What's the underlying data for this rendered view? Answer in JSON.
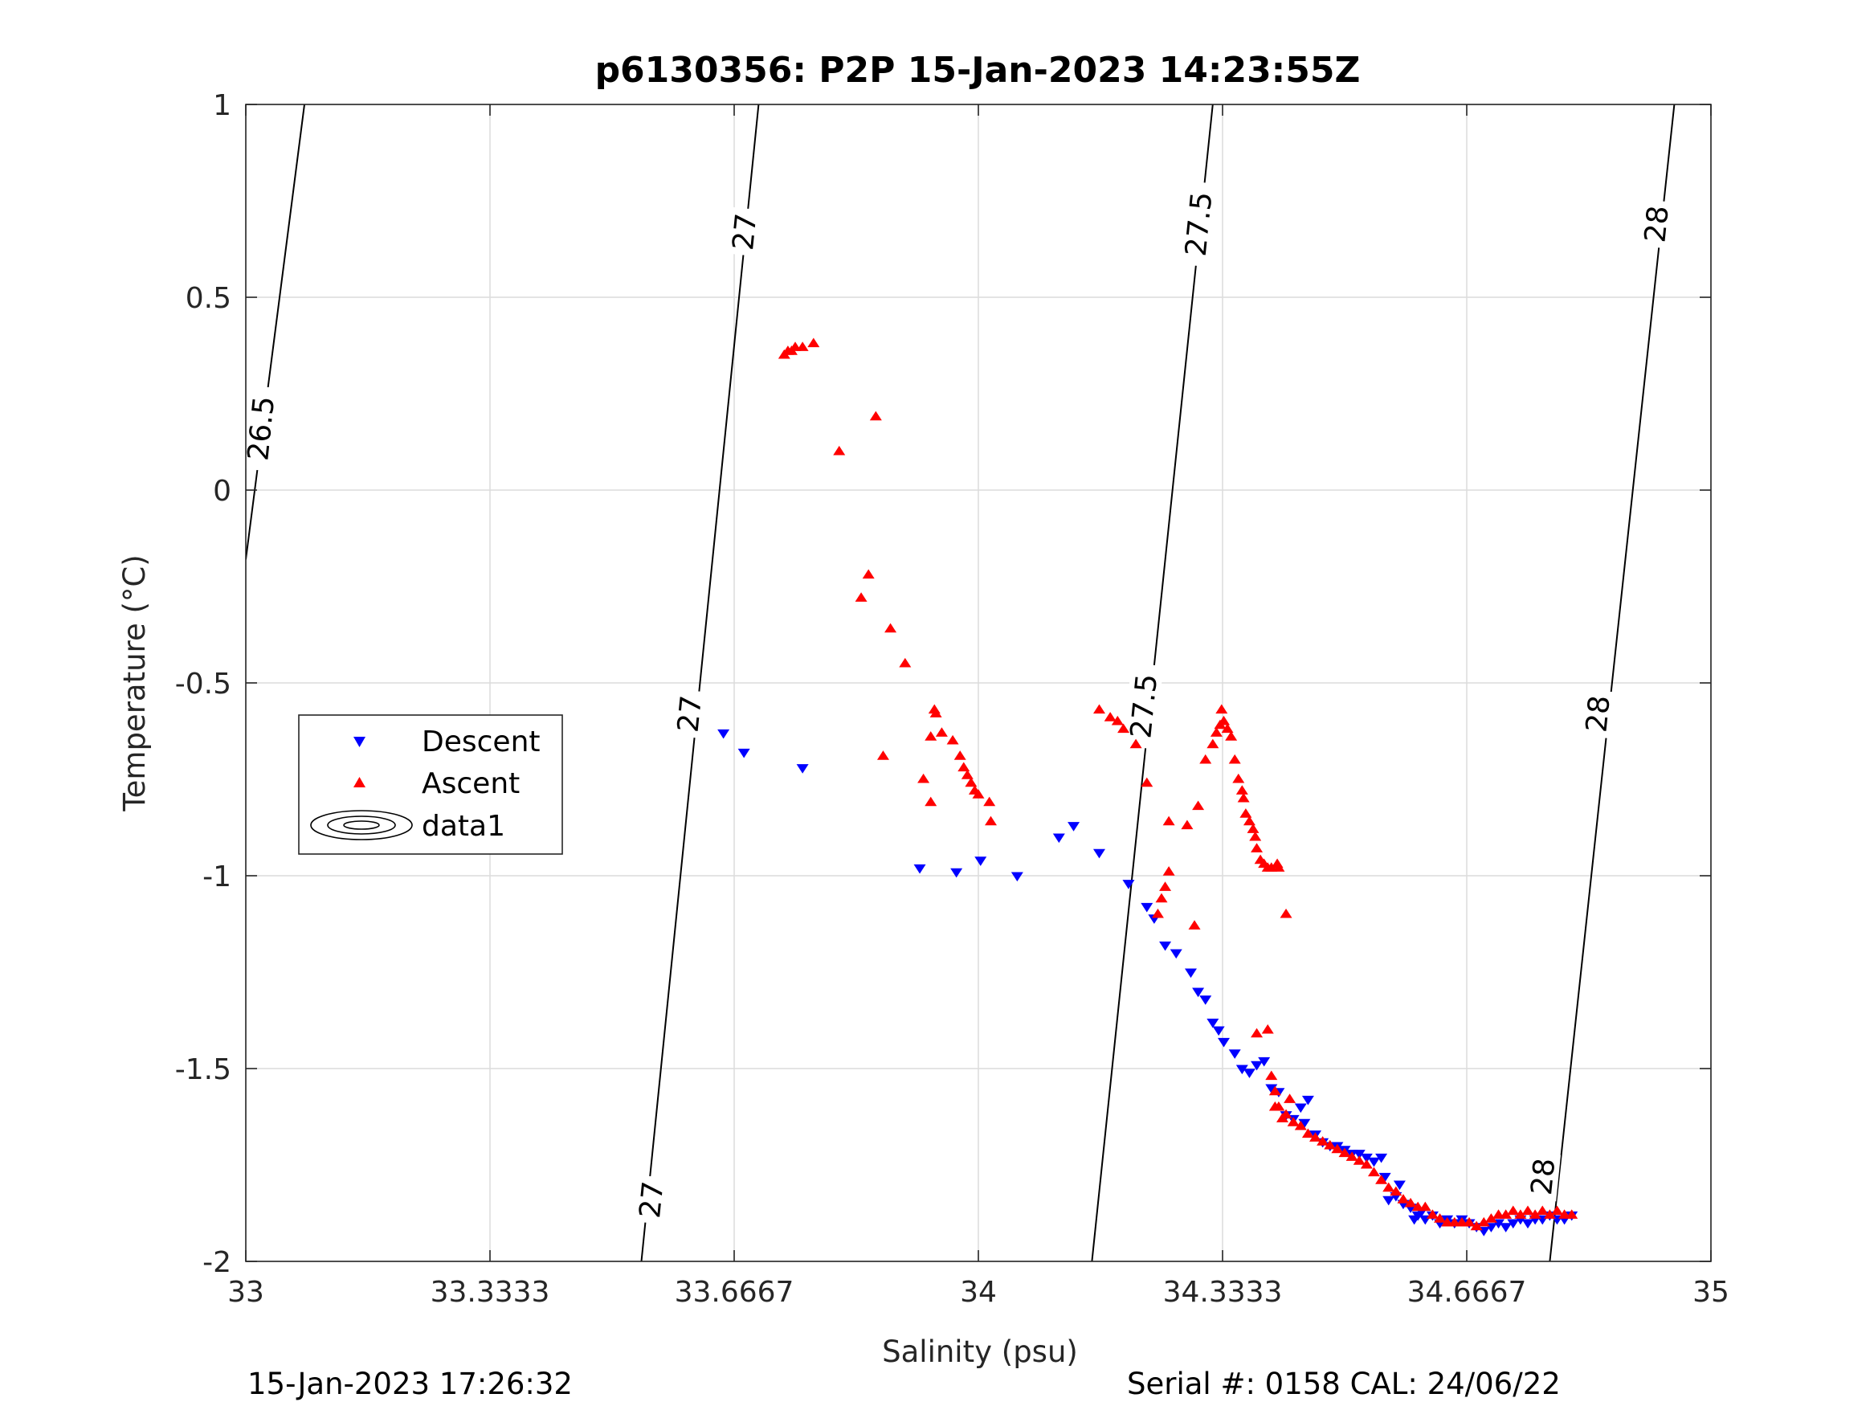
{
  "chart_data": {
    "type": "scatter",
    "title": "p6130356: P2P 15-Jan-2023 14:23:55Z",
    "xlabel": "Salinity (psu)",
    "ylabel": "Temperature (°C)",
    "xlim": [
      33,
      35
    ],
    "ylim": [
      -2,
      1
    ],
    "x_ticks": [
      "33",
      "33.3333",
      "33.6667",
      "34",
      "34.3333",
      "34.6667",
      "35"
    ],
    "y_ticks": [
      "1",
      "0.5",
      "0",
      "-0.5",
      "-1",
      "-1.5",
      "-2"
    ],
    "grid": true,
    "legend_position": "left",
    "legend": [
      "Descent",
      "Ascent",
      "data1"
    ],
    "colors": {
      "descent": "#0000ff",
      "ascent": "#ff0000",
      "contour": "#000000"
    },
    "footer_left": "15-Jan-2023 17:26:32",
    "footer_right": "Serial #: 0158  CAL: 24/06/22",
    "contours": [
      {
        "level": "26.5",
        "points": [
          [
            33.0,
            -0.18
          ],
          [
            33.08,
            1.0
          ]
        ]
      },
      {
        "level": "27",
        "points": [
          [
            33.54,
            -2.0
          ],
          [
            33.7,
            1.0
          ]
        ]
      },
      {
        "level": "27.5",
        "points": [
          [
            34.155,
            -2.0
          ],
          [
            34.32,
            1.0
          ]
        ]
      },
      {
        "level": "28",
        "points": [
          [
            34.78,
            -2.0
          ],
          [
            34.95,
            1.0
          ]
        ]
      }
    ],
    "contour_labels": [
      {
        "text": "26.5",
        "x": 33.02,
        "y": 0.16
      },
      {
        "text": "27",
        "x": 33.68,
        "y": 0.67
      },
      {
        "text": "27",
        "x": 33.605,
        "y": -0.58
      },
      {
        "text": "27",
        "x": 33.553,
        "y": -1.84
      },
      {
        "text": "27.5",
        "x": 34.3,
        "y": 0.69
      },
      {
        "text": "27.5",
        "x": 34.225,
        "y": -0.56
      },
      {
        "text": "28",
        "x": 34.925,
        "y": 0.69
      },
      {
        "text": "28",
        "x": 34.845,
        "y": -0.58
      },
      {
        "text": "28",
        "x": 34.77,
        "y": -1.78
      }
    ],
    "series": [
      {
        "name": "Descent",
        "marker": "triangle-down",
        "points": [
          [
            33.652,
            -0.63
          ],
          [
            33.68,
            -0.68
          ],
          [
            33.76,
            -0.72
          ],
          [
            33.92,
            -0.98
          ],
          [
            33.97,
            -0.99
          ],
          [
            34.003,
            -0.96
          ],
          [
            34.053,
            -1.0
          ],
          [
            34.11,
            -0.9
          ],
          [
            34.13,
            -0.87
          ],
          [
            34.165,
            -0.94
          ],
          [
            34.205,
            -1.02
          ],
          [
            34.23,
            -1.08
          ],
          [
            34.24,
            -1.11
          ],
          [
            34.255,
            -1.18
          ],
          [
            34.27,
            -1.2
          ],
          [
            34.29,
            -1.25
          ],
          [
            34.3,
            -1.3
          ],
          [
            34.31,
            -1.32
          ],
          [
            34.32,
            -1.38
          ],
          [
            34.328,
            -1.4
          ],
          [
            34.335,
            -1.43
          ],
          [
            34.35,
            -1.46
          ],
          [
            34.36,
            -1.5
          ],
          [
            34.37,
            -1.51
          ],
          [
            34.38,
            -1.49
          ],
          [
            34.39,
            -1.48
          ],
          [
            34.4,
            -1.55
          ],
          [
            34.41,
            -1.56
          ],
          [
            34.42,
            -1.62
          ],
          [
            34.43,
            -1.63
          ],
          [
            34.44,
            -1.6
          ],
          [
            34.45,
            -1.58
          ],
          [
            34.445,
            -1.64
          ],
          [
            34.46,
            -1.67
          ],
          [
            34.47,
            -1.69
          ],
          [
            34.48,
            -1.7
          ],
          [
            34.49,
            -1.7
          ],
          [
            34.5,
            -1.71
          ],
          [
            34.51,
            -1.72
          ],
          [
            34.52,
            -1.72
          ],
          [
            34.53,
            -1.73
          ],
          [
            34.54,
            -1.74
          ],
          [
            34.55,
            -1.73
          ],
          [
            34.555,
            -1.78
          ],
          [
            34.56,
            -1.84
          ],
          [
            34.57,
            -1.83
          ],
          [
            34.58,
            -1.85
          ],
          [
            34.59,
            -1.86
          ],
          [
            34.6,
            -1.88
          ],
          [
            34.61,
            -1.89
          ],
          [
            34.62,
            -1.88
          ],
          [
            34.63,
            -1.9
          ],
          [
            34.64,
            -1.89
          ],
          [
            34.65,
            -1.9
          ],
          [
            34.66,
            -1.89
          ],
          [
            34.67,
            -1.9
          ],
          [
            34.68,
            -1.91
          ],
          [
            34.69,
            -1.92
          ],
          [
            34.7,
            -1.91
          ],
          [
            34.71,
            -1.9
          ],
          [
            34.72,
            -1.91
          ],
          [
            34.73,
            -1.9
          ],
          [
            34.74,
            -1.89
          ],
          [
            34.75,
            -1.9
          ],
          [
            34.76,
            -1.89
          ],
          [
            34.77,
            -1.89
          ],
          [
            34.78,
            -1.88
          ],
          [
            34.79,
            -1.89
          ],
          [
            34.8,
            -1.89
          ],
          [
            34.81,
            -1.88
          ],
          [
            34.595,
            -1.89
          ],
          [
            34.605,
            -1.87
          ],
          [
            34.575,
            -1.8
          ]
        ]
      },
      {
        "name": "Ascent",
        "marker": "triangle-up",
        "points": [
          [
            33.735,
            0.35
          ],
          [
            33.74,
            0.36
          ],
          [
            33.745,
            0.36
          ],
          [
            33.75,
            0.37
          ],
          [
            33.76,
            0.37
          ],
          [
            33.775,
            0.38
          ],
          [
            33.81,
            0.1
          ],
          [
            33.86,
            0.19
          ],
          [
            33.85,
            -0.22
          ],
          [
            33.84,
            -0.28
          ],
          [
            33.88,
            -0.36
          ],
          [
            33.9,
            -0.45
          ],
          [
            33.87,
            -0.69
          ],
          [
            33.925,
            -0.75
          ],
          [
            33.935,
            -0.81
          ],
          [
            33.935,
            -0.64
          ],
          [
            33.94,
            -0.57
          ],
          [
            33.942,
            -0.58
          ],
          [
            33.95,
            -0.63
          ],
          [
            33.965,
            -0.65
          ],
          [
            33.975,
            -0.69
          ],
          [
            33.98,
            -0.72
          ],
          [
            33.985,
            -0.74
          ],
          [
            33.99,
            -0.76
          ],
          [
            33.995,
            -0.78
          ],
          [
            34.0,
            -0.79
          ],
          [
            34.015,
            -0.81
          ],
          [
            34.017,
            -0.86
          ],
          [
            34.165,
            -0.57
          ],
          [
            34.18,
            -0.59
          ],
          [
            34.19,
            -0.6
          ],
          [
            34.198,
            -0.62
          ],
          [
            34.215,
            -0.66
          ],
          [
            34.23,
            -0.76
          ],
          [
            34.245,
            -1.1
          ],
          [
            34.25,
            -1.06
          ],
          [
            34.255,
            -1.03
          ],
          [
            34.26,
            -0.99
          ],
          [
            34.26,
            -0.86
          ],
          [
            34.285,
            -0.87
          ],
          [
            34.295,
            -1.13
          ],
          [
            34.3,
            -0.82
          ],
          [
            34.31,
            -0.7
          ],
          [
            34.32,
            -0.66
          ],
          [
            34.325,
            -0.63
          ],
          [
            34.33,
            -0.61
          ],
          [
            34.332,
            -0.57
          ],
          [
            34.335,
            -0.6
          ],
          [
            34.34,
            -0.62
          ],
          [
            34.345,
            -0.64
          ],
          [
            34.35,
            -0.7
          ],
          [
            34.355,
            -0.75
          ],
          [
            34.36,
            -0.78
          ],
          [
            34.362,
            -0.8
          ],
          [
            34.365,
            -0.84
          ],
          [
            34.37,
            -0.86
          ],
          [
            34.375,
            -0.88
          ],
          [
            34.378,
            -0.9
          ],
          [
            34.38,
            -0.93
          ],
          [
            34.385,
            -0.96
          ],
          [
            34.39,
            -0.97
          ],
          [
            34.395,
            -0.98
          ],
          [
            34.4,
            -0.98
          ],
          [
            34.408,
            -0.97
          ],
          [
            34.41,
            -0.98
          ],
          [
            34.42,
            -1.1
          ],
          [
            34.38,
            -1.41
          ],
          [
            34.395,
            -1.4
          ],
          [
            34.4,
            -1.52
          ],
          [
            34.405,
            -1.56
          ],
          [
            34.41,
            -1.6
          ],
          [
            34.42,
            -1.62
          ],
          [
            34.43,
            -1.64
          ],
          [
            34.44,
            -1.65
          ],
          [
            34.45,
            -1.67
          ],
          [
            34.46,
            -1.68
          ],
          [
            34.47,
            -1.69
          ],
          [
            34.48,
            -1.7
          ],
          [
            34.49,
            -1.71
          ],
          [
            34.5,
            -1.72
          ],
          [
            34.51,
            -1.73
          ],
          [
            34.52,
            -1.74
          ],
          [
            34.53,
            -1.75
          ],
          [
            34.54,
            -1.77
          ],
          [
            34.55,
            -1.79
          ],
          [
            34.56,
            -1.81
          ],
          [
            34.57,
            -1.82
          ],
          [
            34.58,
            -1.84
          ],
          [
            34.59,
            -1.85
          ],
          [
            34.6,
            -1.86
          ],
          [
            34.61,
            -1.86
          ],
          [
            34.62,
            -1.88
          ],
          [
            34.63,
            -1.89
          ],
          [
            34.64,
            -1.9
          ],
          [
            34.65,
            -1.9
          ],
          [
            34.66,
            -1.9
          ],
          [
            34.67,
            -1.9
          ],
          [
            34.68,
            -1.91
          ],
          [
            34.69,
            -1.9
          ],
          [
            34.7,
            -1.89
          ],
          [
            34.71,
            -1.88
          ],
          [
            34.72,
            -1.88
          ],
          [
            34.73,
            -1.87
          ],
          [
            34.74,
            -1.88
          ],
          [
            34.75,
            -1.87
          ],
          [
            34.76,
            -1.88
          ],
          [
            34.77,
            -1.87
          ],
          [
            34.78,
            -1.88
          ],
          [
            34.79,
            -1.87
          ],
          [
            34.8,
            -1.88
          ],
          [
            34.81,
            -1.88
          ],
          [
            34.415,
            -1.63
          ],
          [
            34.425,
            -1.58
          ],
          [
            34.405,
            -1.6
          ]
        ]
      }
    ]
  }
}
